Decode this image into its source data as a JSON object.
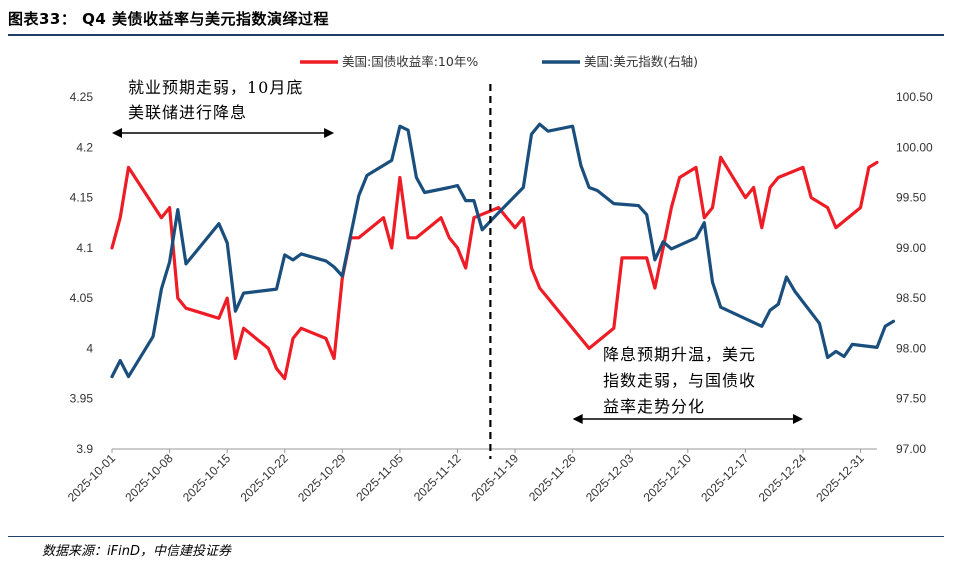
{
  "header": {
    "title": "图表33： Q4 美债收益率与美元指数演绎过程"
  },
  "footer": {
    "source": "数据来源：iFinD，中信建投证券"
  },
  "colors": {
    "yield": "#ee1c25",
    "dxy": "#1a4f7d",
    "rule": "#1f3e68"
  },
  "chart_data": {
    "type": "line",
    "title": "Q4 美债收益率与美元指数演绎过程",
    "ylim_left": [
      3.9,
      4.25
    ],
    "ylim_right": [
      97.0,
      100.5
    ],
    "y_ticks_left": [
      "3.9",
      "3.95",
      "4",
      "4.05",
      "4.1",
      "4.15",
      "4.2",
      "4.25"
    ],
    "y_ticks_right": [
      "97.00",
      "97.50",
      "98.00",
      "98.50",
      "99.00",
      "99.50",
      "100.00",
      "100.50"
    ],
    "x_ticks": [
      "2025-10-01",
      "2025-10-08",
      "2025-10-15",
      "2025-10-22",
      "2025-10-29",
      "2025-11-05",
      "2025-11-12",
      "2025-11-19",
      "2025-11-26",
      "2025-12-03",
      "2025-12-10",
      "2025-12-17",
      "2025-12-24",
      "2025-12-31"
    ],
    "divider_date": "2025-11-16",
    "legend_position": "top-center",
    "series": [
      {
        "name": "美国:国债收益率:10年%",
        "axis": "left",
        "points": [
          [
            "2025-10-01",
            4.1
          ],
          [
            "2025-10-02",
            4.13
          ],
          [
            "2025-10-03",
            4.18
          ],
          [
            "2025-10-07",
            4.13
          ],
          [
            "2025-10-08",
            4.14
          ],
          [
            "2025-10-09",
            4.05
          ],
          [
            "2025-10-10",
            4.04
          ],
          [
            "2025-10-14",
            4.03
          ],
          [
            "2025-10-15",
            4.05
          ],
          [
            "2025-10-16",
            3.99
          ],
          [
            "2025-10-17",
            4.02
          ],
          [
            "2025-10-20",
            4.0
          ],
          [
            "2025-10-21",
            3.98
          ],
          [
            "2025-10-22",
            3.97
          ],
          [
            "2025-10-23",
            4.01
          ],
          [
            "2025-10-24",
            4.02
          ],
          [
            "2025-10-27",
            4.01
          ],
          [
            "2025-10-28",
            3.99
          ],
          [
            "2025-10-29",
            4.07
          ],
          [
            "2025-10-30",
            4.11
          ],
          [
            "2025-10-31",
            4.11
          ],
          [
            "2025-11-03",
            4.13
          ],
          [
            "2025-11-04",
            4.1
          ],
          [
            "2025-11-05",
            4.17
          ],
          [
            "2025-11-06",
            4.11
          ],
          [
            "2025-11-07",
            4.11
          ],
          [
            "2025-11-10",
            4.13
          ],
          [
            "2025-11-11",
            4.11
          ],
          [
            "2025-11-12",
            4.1
          ],
          [
            "2025-11-13",
            4.08
          ],
          [
            "2025-11-14",
            4.13
          ],
          [
            "2025-11-17",
            4.14
          ],
          [
            "2025-11-18",
            4.13
          ],
          [
            "2025-11-19",
            4.12
          ],
          [
            "2025-11-20",
            4.13
          ],
          [
            "2025-11-21",
            4.08
          ],
          [
            "2025-11-22",
            4.06
          ],
          [
            "2025-11-23",
            4.05
          ],
          [
            "2025-11-24",
            4.04
          ],
          [
            "2025-11-26",
            4.02
          ],
          [
            "2025-11-28",
            4.0
          ],
          [
            "2025-12-01",
            4.02
          ],
          [
            "2025-12-02",
            4.09
          ],
          [
            "2025-12-05",
            4.09
          ],
          [
            "2025-12-06",
            4.06
          ],
          [
            "2025-12-08",
            4.14
          ],
          [
            "2025-12-09",
            4.17
          ],
          [
            "2025-12-11",
            4.18
          ],
          [
            "2025-12-12",
            4.13
          ],
          [
            "2025-12-13",
            4.14
          ],
          [
            "2025-12-14",
            4.19
          ],
          [
            "2025-12-17",
            4.15
          ],
          [
            "2025-12-18",
            4.16
          ],
          [
            "2025-12-19",
            4.12
          ],
          [
            "2025-12-20",
            4.16
          ],
          [
            "2025-12-21",
            4.17
          ],
          [
            "2025-12-24",
            4.18
          ],
          [
            "2025-12-25",
            4.15
          ],
          [
            "2025-12-27",
            4.14
          ],
          [
            "2025-12-28",
            4.12
          ],
          [
            "2025-12-31",
            4.14
          ],
          [
            "2026-01-01",
            4.18
          ],
          [
            "2026-01-02",
            4.185
          ]
        ]
      },
      {
        "name": "美国:美元指数(右轴)",
        "axis": "right",
        "points": [
          [
            "2025-10-01",
            97.72
          ],
          [
            "2025-10-02",
            97.88
          ],
          [
            "2025-10-03",
            97.72
          ],
          [
            "2025-10-06",
            98.12
          ],
          [
            "2025-10-07",
            98.59
          ],
          [
            "2025-10-08",
            98.86
          ],
          [
            "2025-10-09",
            99.38
          ],
          [
            "2025-10-10",
            98.84
          ],
          [
            "2025-10-14",
            99.24
          ],
          [
            "2025-10-15",
            99.05
          ],
          [
            "2025-10-16",
            98.37
          ],
          [
            "2025-10-17",
            98.55
          ],
          [
            "2025-10-20",
            98.58
          ],
          [
            "2025-10-21",
            98.59
          ],
          [
            "2025-10-22",
            98.93
          ],
          [
            "2025-10-23",
            98.88
          ],
          [
            "2025-10-24",
            98.94
          ],
          [
            "2025-10-27",
            98.87
          ],
          [
            "2025-10-28",
            98.81
          ],
          [
            "2025-10-29",
            98.72
          ],
          [
            "2025-10-31",
            99.52
          ],
          [
            "2025-11-01",
            99.72
          ],
          [
            "2025-11-04",
            99.87
          ],
          [
            "2025-11-05",
            100.21
          ],
          [
            "2025-11-06",
            100.17
          ],
          [
            "2025-11-07",
            99.7
          ],
          [
            "2025-11-08",
            99.55
          ],
          [
            "2025-11-11",
            99.6
          ],
          [
            "2025-11-12",
            99.62
          ],
          [
            "2025-11-13",
            99.47
          ],
          [
            "2025-11-14",
            99.47
          ],
          [
            "2025-11-15",
            99.18
          ],
          [
            "2025-11-17",
            99.35
          ],
          [
            "2025-11-20",
            99.6
          ],
          [
            "2025-11-21",
            100.13
          ],
          [
            "2025-11-22",
            100.23
          ],
          [
            "2025-11-23",
            100.16
          ],
          [
            "2025-11-26",
            100.21
          ],
          [
            "2025-11-27",
            99.82
          ],
          [
            "2025-11-28",
            99.6
          ],
          [
            "2025-11-29",
            99.57
          ],
          [
            "2025-12-01",
            99.44
          ],
          [
            "2025-12-04",
            99.42
          ],
          [
            "2025-12-05",
            99.33
          ],
          [
            "2025-12-06",
            98.88
          ],
          [
            "2025-12-07",
            99.06
          ],
          [
            "2025-12-08",
            98.99
          ],
          [
            "2025-12-11",
            99.1
          ],
          [
            "2025-12-12",
            99.25
          ],
          [
            "2025-12-13",
            98.66
          ],
          [
            "2025-12-14",
            98.41
          ],
          [
            "2025-12-19",
            98.22
          ],
          [
            "2025-12-20",
            98.38
          ],
          [
            "2025-12-21",
            98.44
          ],
          [
            "2025-12-22",
            98.71
          ],
          [
            "2025-12-23",
            98.57
          ],
          [
            "2025-12-26",
            98.25
          ],
          [
            "2025-12-27",
            97.91
          ],
          [
            "2025-12-28",
            97.97
          ],
          [
            "2025-12-29",
            97.92
          ],
          [
            "2025-12-30",
            98.04
          ],
          [
            "2026-01-02",
            98.01
          ],
          [
            "2026-01-03",
            98.22
          ],
          [
            "2026-01-04",
            98.27
          ]
        ]
      }
    ],
    "annotations": [
      {
        "lines": [
          "就业预期走弱，10月底",
          "美联储进行降息"
        ],
        "arrow_from": "2025-10-01",
        "arrow_to": "2025-10-28"
      },
      {
        "lines": [
          "降息预期升温，美元",
          "指数走弱，与国债收",
          "益率走势分化"
        ],
        "arrow_from": "2025-11-26",
        "arrow_to": "2025-12-24"
      }
    ]
  }
}
